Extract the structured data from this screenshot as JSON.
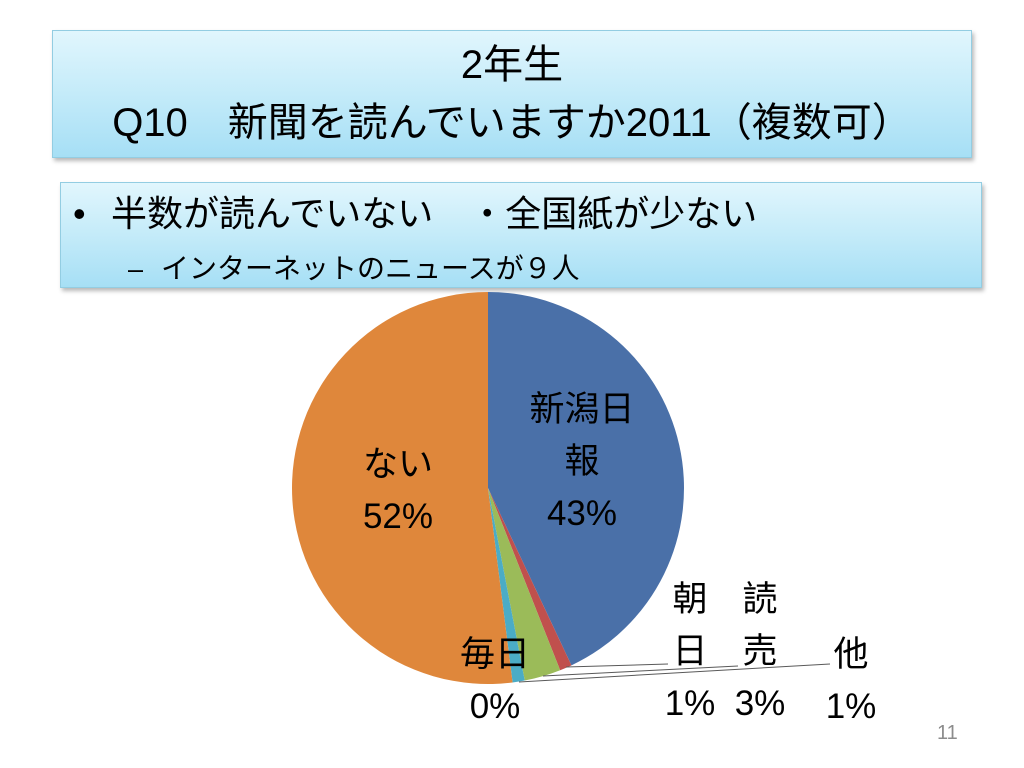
{
  "slide": {
    "title_line1": "2年生",
    "title_line2": "Q10　新聞を読んでいますか2011（複数可）",
    "bullet_symbol": "•",
    "bullet_main": "半数が読んでいない　・全国紙が少ない",
    "sub_bullet_symbol": "–",
    "bullet_sub": "インターネットのニュースが９人",
    "page_number": "11"
  },
  "chart_data": {
    "type": "pie",
    "categories": [
      "新潟日報",
      "朝日",
      "読売",
      "毎日",
      "他",
      "ない"
    ],
    "values": [
      43,
      1,
      3,
      0,
      1,
      52
    ],
    "data_labels": [
      "43%",
      "1%",
      "3%",
      "0%",
      "1%",
      "52%"
    ],
    "colors": [
      "#4a70a8",
      "#c0504d",
      "#9bbb59",
      "#8064a2",
      "#4bacc6",
      "#df873b"
    ],
    "legend": "none"
  }
}
